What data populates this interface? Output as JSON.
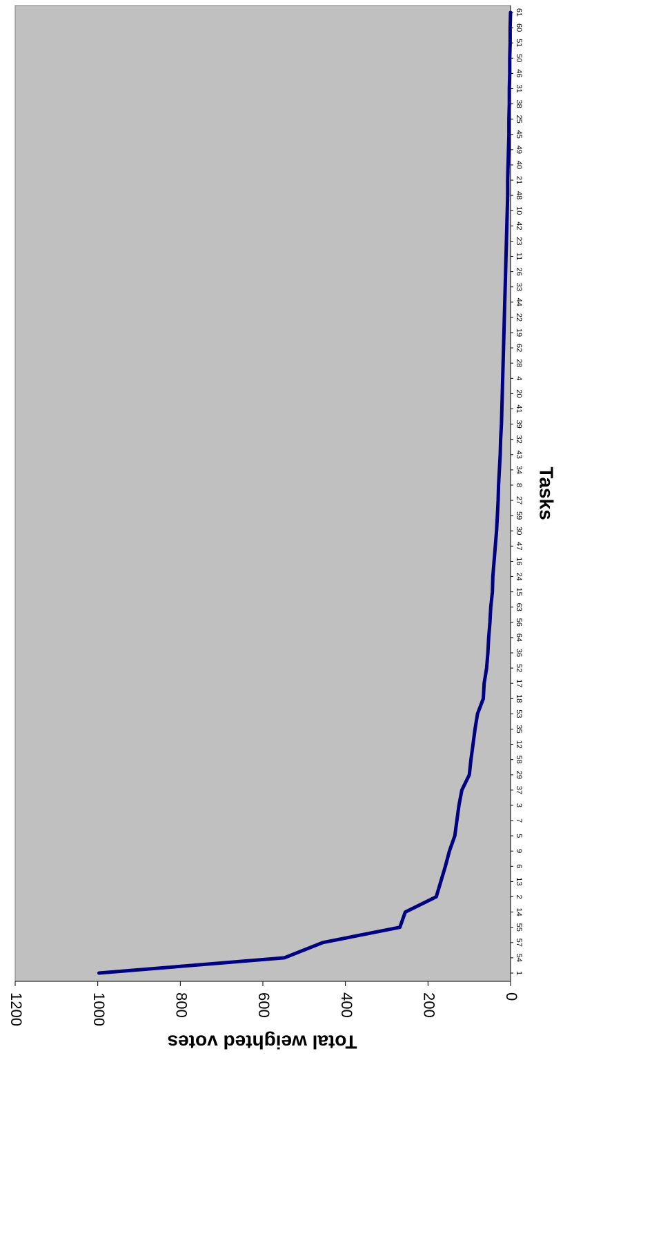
{
  "chart_data": {
    "type": "line",
    "orientation": "rotated-90-clockwise",
    "xlabel": "Tasks",
    "ylabel": "Total weighted votes",
    "ylim": [
      0,
      1200
    ],
    "yticks": [
      0,
      200,
      400,
      600,
      800,
      1000,
      1200
    ],
    "grid": false,
    "legend": "none",
    "categories": [
      "1",
      "54",
      "57",
      "55",
      "14",
      "2",
      "13",
      "6",
      "9",
      "5",
      "7",
      "3",
      "37",
      "29",
      "58",
      "12",
      "35",
      "53",
      "18",
      "17",
      "52",
      "36",
      "64",
      "56",
      "63",
      "15",
      "24",
      "16",
      "47",
      "30",
      "59",
      "27",
      "8",
      "34",
      "43",
      "32",
      "39",
      "41",
      "20",
      "4",
      "28",
      "62",
      "19",
      "22",
      "44",
      "33",
      "26",
      "11",
      "23",
      "42",
      "10",
      "48",
      "21",
      "40",
      "49",
      "45",
      "25",
      "38",
      "31",
      "46",
      "50",
      "51",
      "60",
      "61"
    ],
    "series": [
      {
        "values": [
          997,
          548,
          455,
          268,
          255,
          180,
          169,
          158,
          148,
          135,
          130,
          125,
          118,
          100,
          96,
          91,
          86,
          80,
          66,
          64,
          58,
          55,
          53,
          50,
          48,
          44,
          43,
          40,
          37,
          34,
          32,
          30,
          29,
          27,
          25,
          24,
          22,
          21,
          20,
          19,
          18,
          17,
          16,
          15,
          14,
          13,
          12,
          11,
          10,
          9,
          8,
          7,
          7,
          6,
          5,
          4,
          4,
          3,
          3,
          2,
          2,
          1,
          1,
          0
        ],
        "color": "#000080"
      }
    ],
    "plot_background": "#c0c0c0"
  }
}
